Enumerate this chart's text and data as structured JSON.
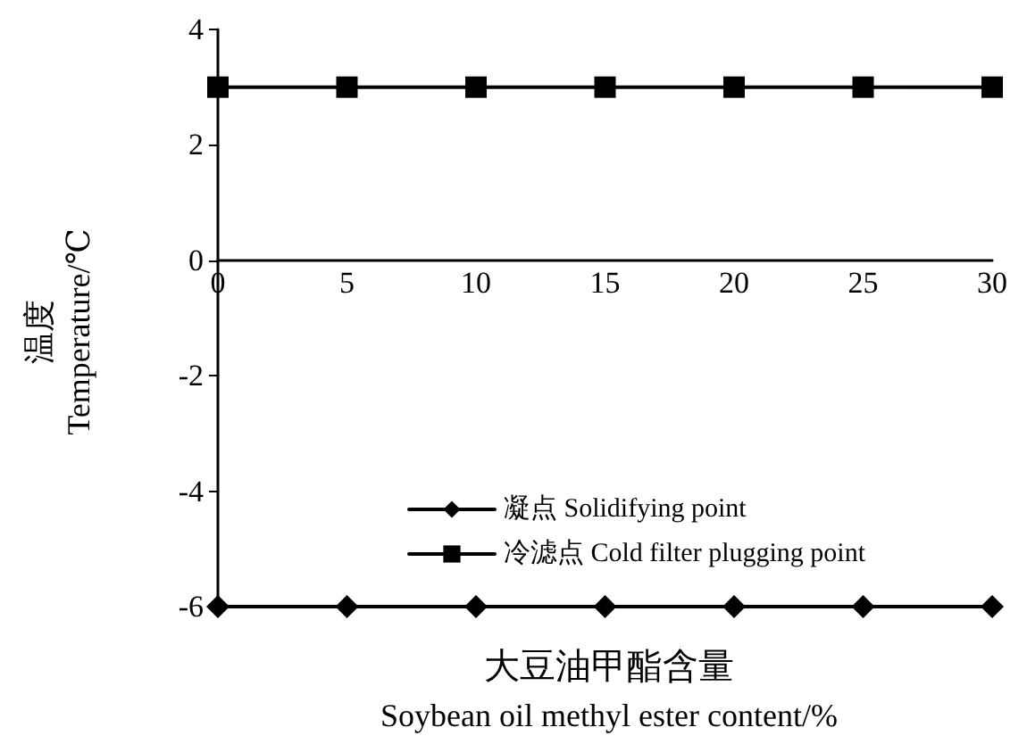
{
  "chart_data": {
    "type": "line",
    "xlabel": "大豆油甲酯含量\nSoybean oil methyl ester content/%",
    "ylabel": "温度\nTemperature/℃",
    "x": [
      0,
      5,
      10,
      15,
      20,
      25,
      30
    ],
    "series": [
      {
        "name": "凝点 Solidifying point",
        "color": "#000000",
        "marker": "diamond",
        "values": [
          -6,
          -6,
          -6,
          -6,
          -6,
          -6,
          -6
        ]
      },
      {
        "name": "冷滤点 Cold filter plugging point",
        "color": "#000000",
        "marker": "square",
        "values": [
          3,
          3,
          3,
          3,
          3,
          3,
          3
        ]
      }
    ],
    "xlim": [
      0,
      30
    ],
    "xticks": [
      0,
      5,
      10,
      15,
      20,
      25,
      30
    ],
    "ylim": [
      -6,
      4
    ],
    "yticks": [
      -6,
      -4,
      -2,
      0,
      2,
      4
    ],
    "grid": false,
    "legend": "bottom",
    "line_style": "solid"
  }
}
